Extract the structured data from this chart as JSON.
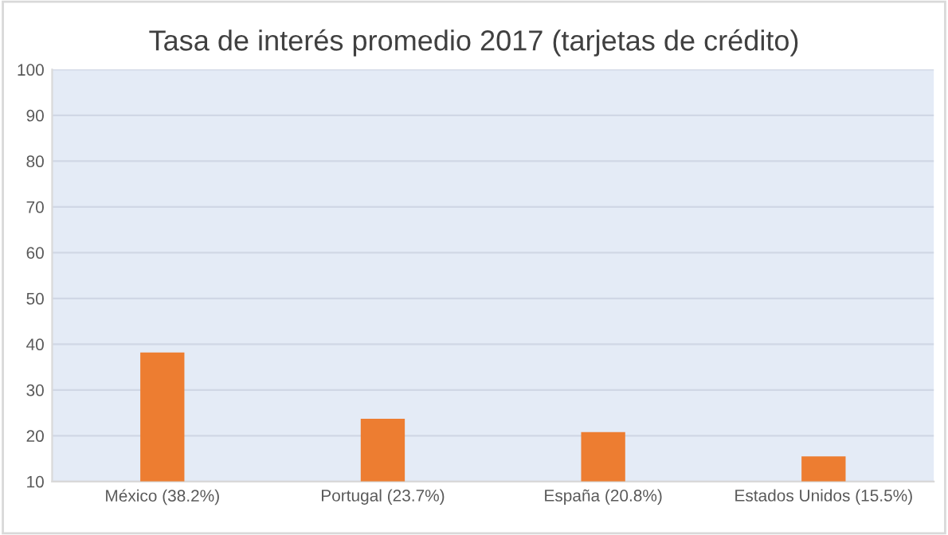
{
  "chart_data": {
    "type": "bar",
    "title": "Tasa de interés promedio 2017 (tarjetas de crédito)",
    "categories": [
      "México (38.2%)",
      "Portugal (23.7%)",
      "España (20.8%)",
      "Estados Unidos (15.5%)"
    ],
    "values": [
      38.2,
      23.7,
      20.8,
      15.5
    ],
    "color": "#ed7d31",
    "ylim": [
      10,
      100
    ],
    "yticks": [
      10,
      20,
      30,
      40,
      50,
      60,
      70,
      80,
      90,
      100
    ],
    "grid": "y"
  }
}
